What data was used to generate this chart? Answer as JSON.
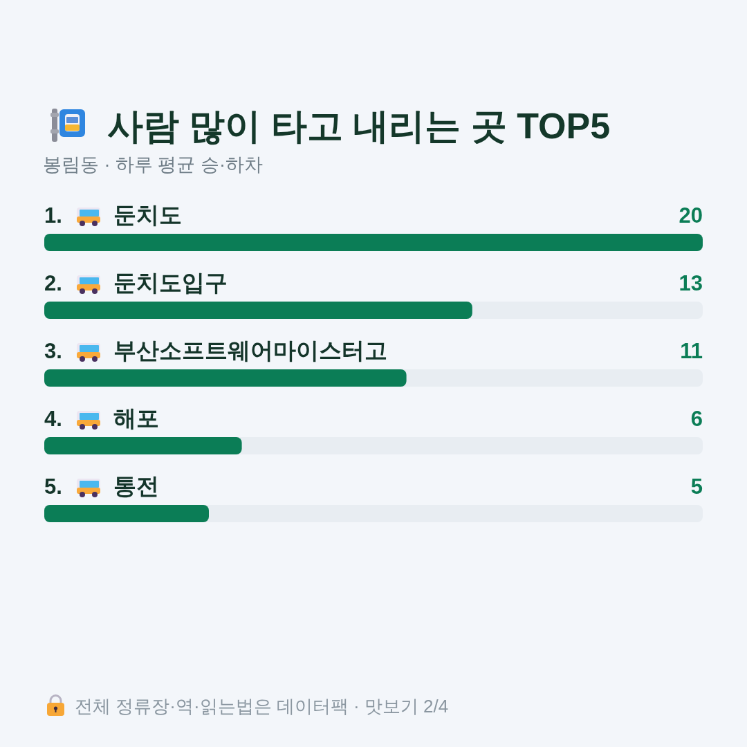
{
  "chart_data": {
    "type": "bar",
    "orientation": "horizontal",
    "title": "사람 많이 타고 내리는 곳 TOP5",
    "subtitle": "봉림동 · 하루 평균 승·하차",
    "categories": [
      "1. 둔치도",
      "2. 둔치도입구",
      "3. 부산소프트웨어마이스터고",
      "4. 해포",
      "5. 통전"
    ],
    "values": [
      20,
      13,
      11,
      6,
      5
    ],
    "color": "#0b7d56",
    "data_labels": true,
    "annotations": [
      "전체 정류장·역·읽는법은 데이터팩 · 맛보기 2/4"
    ]
  }
}
